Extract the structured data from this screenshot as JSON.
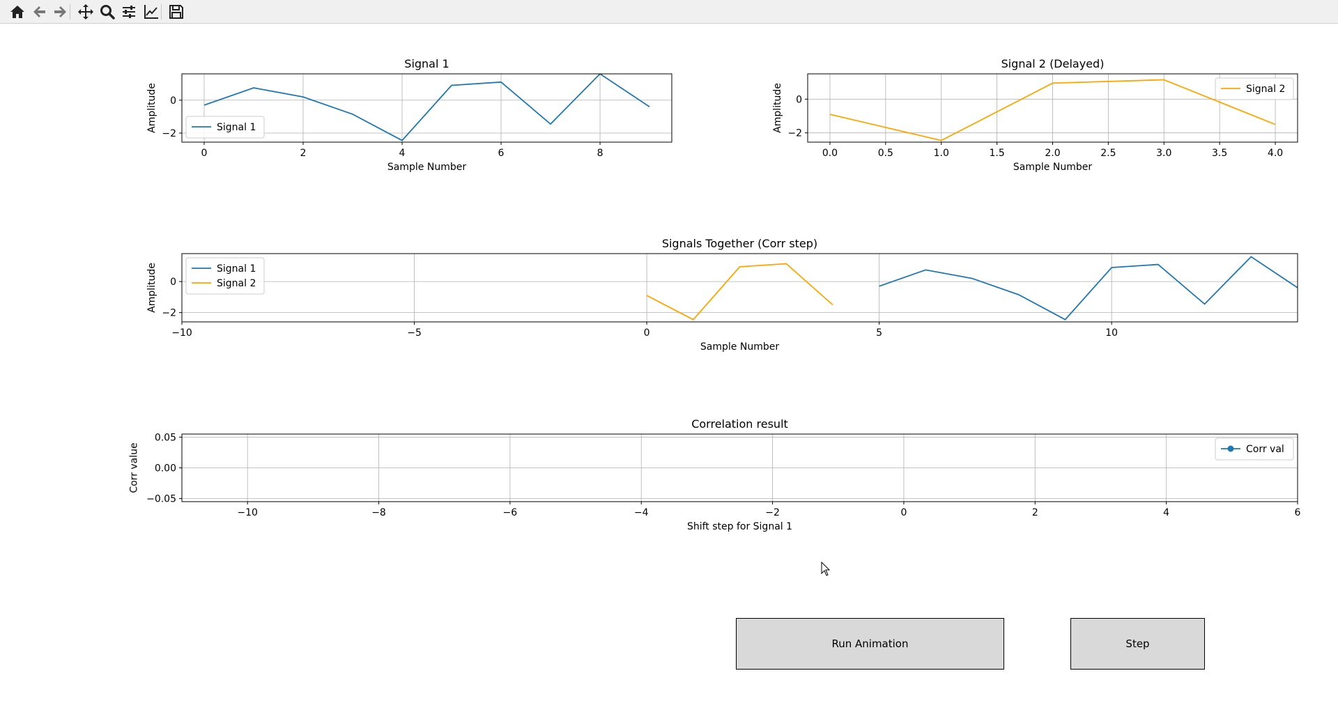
{
  "toolbar": {
    "buttons": [
      {
        "name": "home-icon",
        "title": "Home"
      },
      {
        "name": "back-arrow-icon",
        "title": "Back"
      },
      {
        "name": "forward-arrow-icon",
        "title": "Forward"
      },
      {
        "name": "pan-move-icon",
        "title": "Pan"
      },
      {
        "name": "zoom-magnifier-icon",
        "title": "Zoom"
      },
      {
        "name": "subplots-sliders-icon",
        "title": "Configure subplots"
      },
      {
        "name": "edit-axes-chart-icon",
        "title": "Edit axis"
      },
      {
        "name": "save-floppy-icon",
        "title": "Save"
      }
    ]
  },
  "colors": {
    "signal1": "#1f77b4",
    "signal2": "#ffa500",
    "grid": "#b0b0b0",
    "button_bg": "#d9d9d9"
  },
  "buttons": {
    "run_label": "Run Animation",
    "step_label": "Step"
  },
  "chart_data": [
    {
      "type": "line",
      "title": "Signal 1",
      "xlabel": "Sample Number",
      "ylabel": "Amplitude",
      "xlim": [
        -0.45,
        9.45
      ],
      "ylim": [
        -2.55,
        1.6
      ],
      "xticks": [
        0,
        2,
        4,
        6,
        8
      ],
      "xticklabels": [
        "0",
        "2",
        "4",
        "6",
        "8"
      ],
      "yticks": [
        0,
        -2
      ],
      "yticklabels": [
        "0",
        "−2"
      ],
      "grid": true,
      "legend": "lower-left",
      "series": [
        {
          "name": "Signal 1",
          "color": "#1f77b4",
          "x": [
            0,
            1,
            2,
            3,
            4,
            5,
            6,
            7,
            8,
            9
          ],
          "y": [
            -0.3,
            0.75,
            0.2,
            -0.85,
            -2.45,
            0.9,
            1.1,
            -1.45,
            1.6,
            -0.4
          ]
        }
      ]
    },
    {
      "type": "line",
      "title": "Signal 2 (Delayed)",
      "xlabel": "Sample Number",
      "ylabel": "Amplitude",
      "xlim": [
        -0.2,
        4.2
      ],
      "ylim": [
        -2.55,
        1.5
      ],
      "xticks": [
        0,
        0.5,
        1,
        1.5,
        2,
        2.5,
        3,
        3.5,
        4
      ],
      "xticklabels": [
        "0.0",
        "0.5",
        "1.0",
        "1.5",
        "2.0",
        "2.5",
        "3.0",
        "3.5",
        "4.0"
      ],
      "yticks": [
        0,
        -2
      ],
      "yticklabels": [
        "0",
        "−2"
      ],
      "grid": true,
      "legend": "top-right",
      "series": [
        {
          "name": "Signal 2",
          "color": "#ffa500",
          "x": [
            0,
            1,
            2,
            3,
            4
          ],
          "y": [
            -0.9,
            -2.45,
            0.95,
            1.15,
            -1.5
          ]
        }
      ]
    },
    {
      "type": "line",
      "title": "Signals Together (Corr step)",
      "xlabel": "Sample Number",
      "ylabel": "Amplitude",
      "xlim": [
        -10,
        14
      ],
      "ylim": [
        -2.6,
        1.8
      ],
      "xticks": [
        -10,
        -5,
        0,
        5,
        10
      ],
      "xticklabels": [
        "−10",
        "−5",
        "0",
        "5",
        "10"
      ],
      "yticks": [
        0,
        -2
      ],
      "yticklabels": [
        "0",
        "−2"
      ],
      "grid": true,
      "legend": "top-left",
      "series": [
        {
          "name": "Signal 1",
          "color": "#1f77b4",
          "x": [
            5,
            6,
            7,
            8,
            9,
            10,
            11,
            12,
            13,
            14
          ],
          "y": [
            -0.3,
            0.75,
            0.2,
            -0.85,
            -2.45,
            0.9,
            1.1,
            -1.45,
            1.6,
            -0.4
          ]
        },
        {
          "name": "Signal 2",
          "color": "#ffa500",
          "x": [
            0,
            1,
            2,
            3,
            4
          ],
          "y": [
            -0.9,
            -2.45,
            0.95,
            1.15,
            -1.5
          ]
        }
      ]
    },
    {
      "type": "line",
      "title": "Correlation result",
      "xlabel": "Shift step for Signal 1",
      "ylabel": "Corr value",
      "xlim": [
        -11,
        6
      ],
      "ylim": [
        -0.055,
        0.055
      ],
      "xticks": [
        -10,
        -8,
        -6,
        -4,
        -2,
        0,
        2,
        4,
        6
      ],
      "xticklabels": [
        "−10",
        "−8",
        "−6",
        "−4",
        "−2",
        "0",
        "2",
        "4",
        "6"
      ],
      "yticks": [
        0.05,
        0,
        -0.05
      ],
      "yticklabels": [
        "0.05",
        "0.00",
        "−0.05"
      ],
      "grid": true,
      "legend": "top-right",
      "series": [
        {
          "name": "Corr val",
          "color": "#1f77b4",
          "marker": "o",
          "x": [],
          "y": []
        }
      ]
    }
  ]
}
